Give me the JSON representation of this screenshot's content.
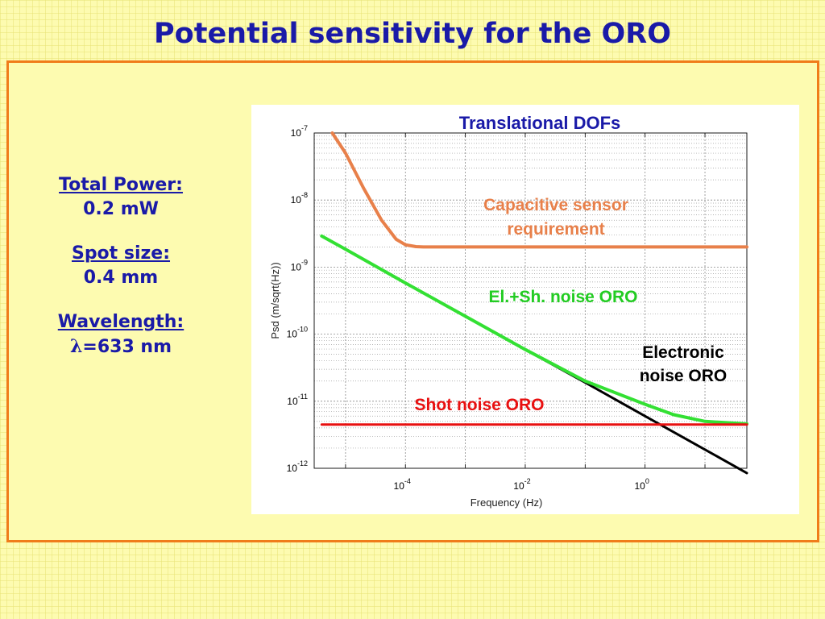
{
  "slide": {
    "title": "Potential sensitivity for the ORO"
  },
  "params": [
    {
      "label": "Total Power:",
      "value": "0.2 mW"
    },
    {
      "label": "Spot size:",
      "value": "0.4 mm"
    },
    {
      "label": "Wavelength:",
      "value_symbol": "λ",
      "value": "=633 nm"
    }
  ],
  "chart_data": {
    "type": "line",
    "title": "Translational DOFs",
    "xlabel": "Frequency (Hz)",
    "ylabel": "Psd (m/sqrt(Hz))",
    "xscale": "log",
    "yscale": "log",
    "xlim": [
      3e-06,
      50
    ],
    "ylim": [
      1e-12,
      1e-07
    ],
    "grid": true,
    "x_ticks": [
      {
        "base": "10",
        "exp": "-4"
      },
      {
        "base": "10",
        "exp": "-2"
      },
      {
        "base": "10",
        "exp": "0"
      }
    ],
    "y_ticks": [
      {
        "base": "10",
        "exp": "-7"
      },
      {
        "base": "10",
        "exp": "-8"
      },
      {
        "base": "10",
        "exp": "-9"
      },
      {
        "base": "10",
        "exp": "-10"
      },
      {
        "base": "10",
        "exp": "-11"
      },
      {
        "base": "10",
        "exp": "-12"
      }
    ],
    "colors": {
      "capacitive": "#e8804a",
      "el_sh": "#33e033",
      "electronic": "#000000",
      "shot": "#e81010"
    },
    "series": [
      {
        "key": "capacitive",
        "name": "Capacitive sensor requirement",
        "x": [
          6e-06,
          1e-05,
          2e-05,
          4e-05,
          7e-05,
          0.0001,
          0.00015,
          0.0002,
          0.0005,
          0.001,
          0.01,
          0.1,
          1,
          10,
          50
        ],
        "y": [
          1e-07,
          5e-08,
          1.5e-08,
          5e-09,
          2.6e-09,
          2.15e-09,
          2.02e-09,
          2e-09,
          2e-09,
          2e-09,
          2e-09,
          2e-09,
          2e-09,
          2e-09,
          2e-09
        ]
      },
      {
        "key": "electronic",
        "name": "Electronic noise ORO",
        "x": [
          4e-06,
          1e-05,
          0.0001,
          0.001,
          0.01,
          0.1,
          1,
          10,
          50
        ],
        "y": [
          2.9e-09,
          1.85e-09,
          5.8e-10,
          1.85e-10,
          5.9e-11,
          1.9e-11,
          6e-12,
          1.9e-12,
          8.5e-13
        ]
      },
      {
        "key": "el_sh",
        "name": "El.+Sh. noise ORO",
        "x": [
          4e-06,
          1e-05,
          0.0001,
          0.001,
          0.01,
          0.1,
          1,
          3,
          10,
          50
        ],
        "y": [
          2.9e-09,
          1.85e-09,
          5.8e-10,
          1.85e-10,
          5.9e-11,
          2e-11,
          9e-12,
          6.3e-12,
          5e-12,
          4.6e-12
        ]
      },
      {
        "key": "shot",
        "name": "Shot noise ORO",
        "x": [
          4e-06,
          50
        ],
        "y": [
          4.5e-12,
          4.5e-12
        ]
      }
    ],
    "annotations": {
      "capacitive": [
        "Capacitive sensor",
        "requirement"
      ],
      "el_sh": "El.+Sh. noise ORO",
      "electronic": [
        "Electronic",
        "noise ORO"
      ],
      "shot": "Shot noise ORO"
    }
  }
}
